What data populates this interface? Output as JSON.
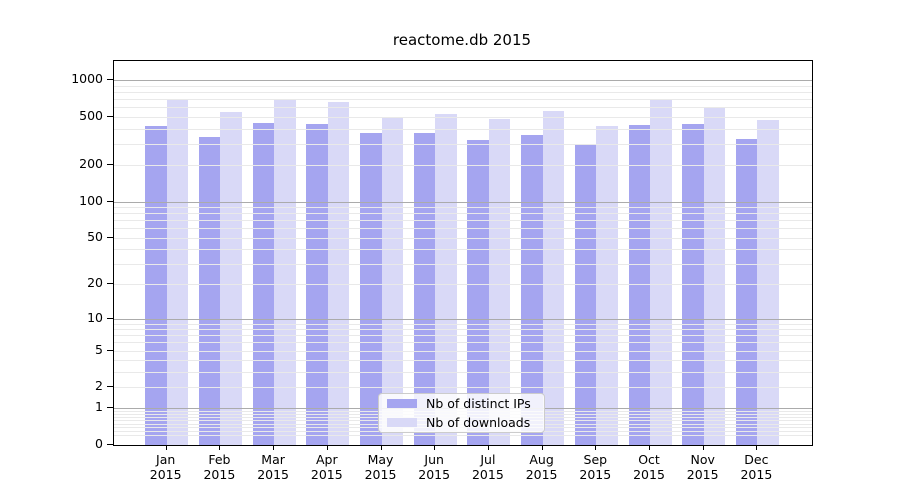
{
  "title": "reactome.db 2015",
  "chart_data": {
    "type": "bar",
    "title": "reactome.db 2015",
    "xlabel": "",
    "ylabel": "",
    "scale": "log1p",
    "categories": [
      "Jan",
      "Feb",
      "Mar",
      "Apr",
      "May",
      "Jun",
      "Jul",
      "Aug",
      "Sep",
      "Oct",
      "Nov",
      "Dec"
    ],
    "year_label": "2015",
    "series": [
      {
        "name": "Nb of distinct IPs",
        "color": "#a5a5f0",
        "values": [
          420,
          340,
          450,
          435,
          370,
          370,
          325,
          355,
          295,
          430,
          440,
          330
        ]
      },
      {
        "name": "Nb of downloads",
        "color": "#d9d9f7",
        "values": [
          695,
          550,
          685,
          660,
          490,
          530,
          480,
          555,
          425,
          700,
          600,
          475
        ]
      }
    ],
    "yticks": [
      0,
      1,
      2,
      5,
      10,
      20,
      50,
      100,
      200,
      500,
      1000
    ],
    "ylim": [
      0,
      1400
    ],
    "grid": {
      "major_values": [
        1,
        10,
        100,
        1000
      ],
      "minor_on": true,
      "major_color": "#ababab",
      "minor_color": "#e9e9e9",
      "drawn_over_bars": true
    },
    "legend_position": "inside lower-center",
    "axis_color": "#000000",
    "background_color": "#ffffff"
  }
}
